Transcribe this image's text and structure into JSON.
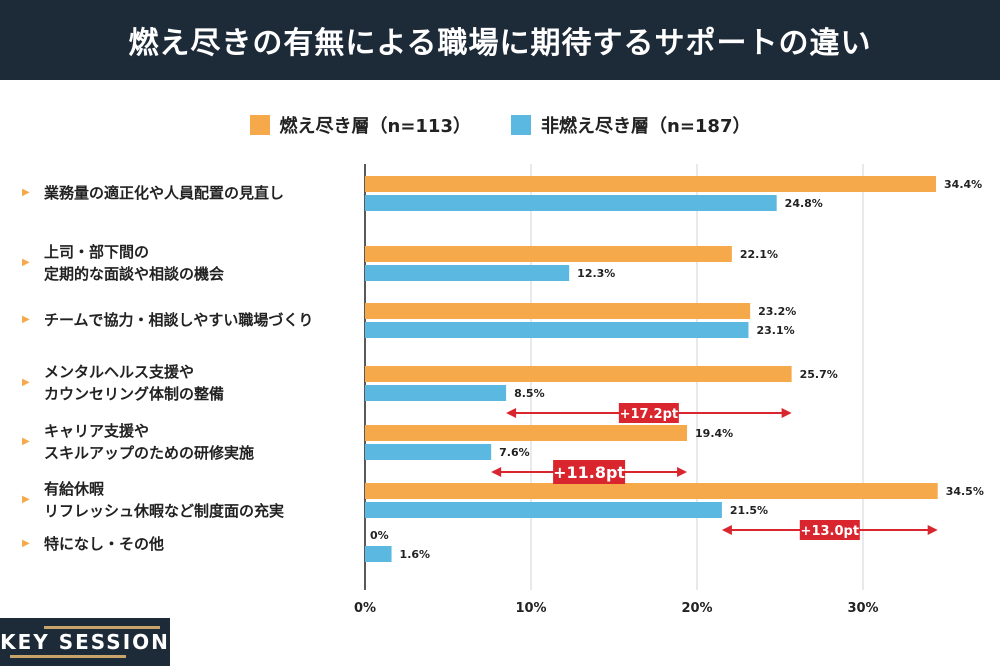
{
  "chart_data": {
    "type": "bar",
    "orientation": "horizontal",
    "title": "燃え尽きの有無による職場に期待するサポートの違い",
    "categories": [
      "業務量の適正化や人員配置の見直し",
      "上司・部下間の\n定期的な面談や相談の機会",
      "チームで協力・相談しやすい職場づくり",
      "メンタルヘルス支援や\nカウンセリング体制の整備",
      "キャリア支援や\nスキルアップのための研修実施",
      "有給休暇\nリフレッシュ休暇など制度面の充実",
      "特になし・その他"
    ],
    "series": [
      {
        "name": "燃え尽き層（n=113）",
        "color": "#f5a94a",
        "values": [
          34.4,
          22.1,
          23.2,
          25.7,
          19.4,
          34.5,
          0
        ]
      },
      {
        "name": "非燃え尽き層（n=187）",
        "color": "#5bb8e0",
        "values": [
          24.8,
          12.3,
          23.1,
          8.5,
          7.6,
          21.5,
          1.6
        ]
      }
    ],
    "xlim": [
      0,
      35
    ],
    "xticks": [
      "0%",
      "10%",
      "20%",
      "30%"
    ],
    "grid": true,
    "legend": "top",
    "annotations": [
      {
        "category_index": 3,
        "label": "+17.2pt"
      },
      {
        "category_index": 4,
        "label": "+11.8pt"
      },
      {
        "category_index": 5,
        "label": "+13.0pt"
      }
    ],
    "annotation_color": "#d9262e"
  },
  "logo": "KEY SESSION"
}
